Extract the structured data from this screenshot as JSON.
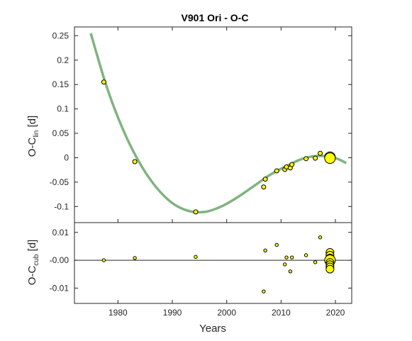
{
  "chart_data": [
    {
      "type": "scatter",
      "title": "V901 Ori - O-C",
      "ylabel_main": "O-C",
      "ylabel_sub": "lin",
      "ylabel_unit": "[d]",
      "xlim": [
        1972,
        2023
      ],
      "ylim": [
        -0.133,
        0.268
      ],
      "yticks": [
        -0.1,
        -0.05,
        0,
        0.05,
        0.1,
        0.15,
        0.2,
        0.25
      ],
      "ytick_labels": [
        "-0.1",
        "-0.05",
        "0",
        "0.05",
        "0.1",
        "0.15",
        "0.2",
        "0.25"
      ],
      "grid": false,
      "marker_color": "#ffff00",
      "fit_color": "#7fb47f",
      "fit_curve": {
        "name": "cubic fit",
        "x": [
          1975,
          1978,
          1981,
          1984,
          1987,
          1990,
          1993,
          1996,
          1999,
          2002,
          2005,
          2008,
          2011,
          2014,
          2017,
          2020,
          2022
        ],
        "y": [
          0.255,
          0.143,
          0.056,
          -0.011,
          -0.06,
          -0.093,
          -0.109,
          -0.111,
          -0.1,
          -0.081,
          -0.058,
          -0.035,
          -0.017,
          -0.002,
          0.004,
          -0.001,
          -0.011
        ]
      },
      "points": [
        {
          "x": 1977.4,
          "y": 0.155,
          "size": "small"
        },
        {
          "x": 1983.1,
          "y": -0.008,
          "size": "small"
        },
        {
          "x": 1994.3,
          "y": -0.111,
          "size": "small"
        },
        {
          "x": 2006.8,
          "y": -0.06,
          "size": "small"
        },
        {
          "x": 2007.1,
          "y": -0.044,
          "size": "small"
        },
        {
          "x": 2009.2,
          "y": -0.027,
          "size": "small"
        },
        {
          "x": 2010.7,
          "y": -0.024,
          "size": "small"
        },
        {
          "x": 2011.0,
          "y": -0.019,
          "size": "small"
        },
        {
          "x": 2011.7,
          "y": -0.021,
          "size": "small"
        },
        {
          "x": 2012.0,
          "y": -0.014,
          "size": "small"
        },
        {
          "x": 2014.6,
          "y": -0.002,
          "size": "small"
        },
        {
          "x": 2016.3,
          "y": -0.001,
          "size": "small"
        },
        {
          "x": 2017.2,
          "y": 0.009,
          "size": "small"
        },
        {
          "x": 2019.0,
          "y": 0.001,
          "size": "large"
        },
        {
          "x": 2019.0,
          "y": -0.001,
          "size": "large"
        }
      ]
    },
    {
      "type": "scatter",
      "ylabel_main": "O-C",
      "ylabel_sub": "cub",
      "ylabel_unit": "[d]",
      "xlabel": "Years",
      "xlim": [
        1972,
        2023
      ],
      "ylim": [
        -0.0155,
        0.0135
      ],
      "xticks": [
        1980,
        1990,
        2000,
        2010,
        2020
      ],
      "xtick_labels": [
        "1980",
        "1990",
        "2000",
        "2010",
        "2020"
      ],
      "yticks": [
        -0.01,
        0,
        0.01
      ],
      "ytick_labels": [
        "-0.01",
        "-0.00",
        "0.01"
      ],
      "zero_line": true,
      "grid": false,
      "marker_color": "#ffff00",
      "points": [
        {
          "x": 1977.4,
          "y": 0.0,
          "size": "tiny"
        },
        {
          "x": 1983.1,
          "y": 0.0008,
          "size": "tiny"
        },
        {
          "x": 1994.3,
          "y": 0.0012,
          "size": "tiny"
        },
        {
          "x": 2006.8,
          "y": -0.0112,
          "size": "tiny"
        },
        {
          "x": 2007.1,
          "y": 0.0035,
          "size": "tiny"
        },
        {
          "x": 2009.2,
          "y": 0.0055,
          "size": "tiny"
        },
        {
          "x": 2010.7,
          "y": -0.0015,
          "size": "tiny"
        },
        {
          "x": 2011.0,
          "y": 0.001,
          "size": "tiny"
        },
        {
          "x": 2011.7,
          "y": -0.004,
          "size": "tiny"
        },
        {
          "x": 2012.0,
          "y": 0.001,
          "size": "tiny"
        },
        {
          "x": 2014.6,
          "y": 0.0018,
          "size": "tiny"
        },
        {
          "x": 2016.3,
          "y": -0.0007,
          "size": "tiny"
        },
        {
          "x": 2017.2,
          "y": 0.0082,
          "size": "tiny"
        },
        {
          "x": 2019.0,
          "y": 0.0028,
          "size": "medium"
        },
        {
          "x": 2019.0,
          "y": 0.0018,
          "size": "medium"
        },
        {
          "x": 2019.0,
          "y": 0.0008,
          "size": "medium"
        },
        {
          "x": 2019.0,
          "y": 0.0,
          "size": "large"
        },
        {
          "x": 2019.0,
          "y": -0.0008,
          "size": "medium"
        },
        {
          "x": 2019.0,
          "y": -0.0016,
          "size": "medium"
        },
        {
          "x": 2019.0,
          "y": -0.0024,
          "size": "medium"
        },
        {
          "x": 2019.0,
          "y": -0.0032,
          "size": "medium"
        }
      ]
    }
  ]
}
